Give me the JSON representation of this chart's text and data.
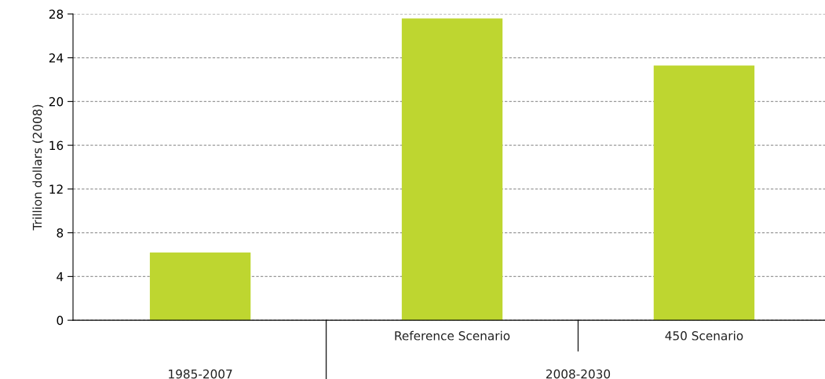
{
  "chart_data": {
    "type": "bar",
    "ylabel": "Trillion dollars (2008)",
    "categories": [
      null,
      "Reference Scenario",
      "450 Scenario"
    ],
    "values": [
      6.2,
      27.6,
      23.3
    ],
    "color": "#bed630",
    "ylim": [
      0,
      28
    ],
    "yticks": [
      0,
      4,
      8,
      12,
      16,
      20,
      24,
      28
    ],
    "grid": "y",
    "annotations": [
      "1985-2007",
      "2008-2030"
    ]
  }
}
